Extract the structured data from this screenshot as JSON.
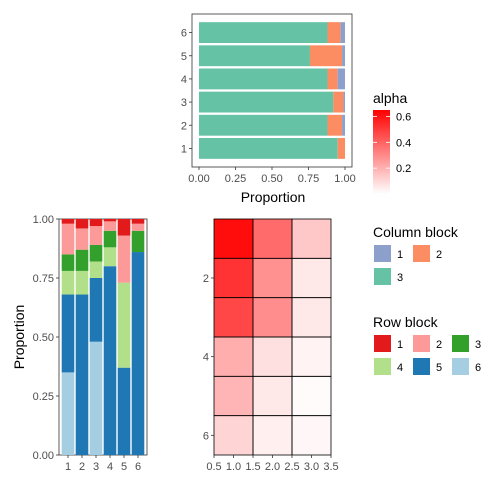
{
  "colors": {
    "column_block": {
      "1": "#8DA0CB",
      "2": "#FC8D62",
      "3": "#66C2A5"
    },
    "row_block": {
      "1": "#E31A1C",
      "2": "#FB9A99",
      "3": "#33A02C",
      "4": "#B2DF8A",
      "5": "#1F78B4",
      "6": "#A6CEE3"
    }
  },
  "chart_data": [
    {
      "type": "bar",
      "orientation": "horizontal",
      "stacked": true,
      "categories": [
        "1",
        "2",
        "3",
        "4",
        "5",
        "6"
      ],
      "series": [
        {
          "name": "3",
          "color": "#66C2A5",
          "values": [
            0.95,
            0.88,
            0.92,
            0.88,
            0.76,
            0.88
          ]
        },
        {
          "name": "2",
          "color": "#FC8D62",
          "values": [
            0.05,
            0.1,
            0.07,
            0.07,
            0.22,
            0.09
          ]
        },
        {
          "name": "1",
          "color": "#8DA0CB",
          "values": [
            0.0,
            0.02,
            0.01,
            0.05,
            0.02,
            0.03
          ]
        }
      ],
      "xlabel": "Proportion",
      "xlim": [
        0,
        1
      ],
      "xticks": [
        "0.00",
        "0.25",
        "0.50",
        "0.75",
        "1.00"
      ]
    },
    {
      "type": "bar",
      "orientation": "vertical",
      "stacked": true,
      "categories": [
        "1",
        "2",
        "3",
        "4",
        "5",
        "6"
      ],
      "series": [
        {
          "name": "6",
          "color": "#A6CEE3",
          "values": [
            0.35,
            0.0,
            0.48,
            0.0,
            0.0,
            0.0
          ]
        },
        {
          "name": "5",
          "color": "#1F78B4",
          "values": [
            0.33,
            0.68,
            0.27,
            0.8,
            0.37,
            0.86
          ]
        },
        {
          "name": "4",
          "color": "#B2DF8A",
          "values": [
            0.1,
            0.1,
            0.07,
            0.08,
            0.36,
            0.0
          ]
        },
        {
          "name": "3",
          "color": "#33A02C",
          "values": [
            0.07,
            0.09,
            0.07,
            0.07,
            0.0,
            0.09
          ]
        },
        {
          "name": "2",
          "color": "#FB9A99",
          "values": [
            0.13,
            0.09,
            0.08,
            0.04,
            0.2,
            0.03
          ]
        },
        {
          "name": "1",
          "color": "#E31A1C",
          "values": [
            0.02,
            0.04,
            0.03,
            0.01,
            0.07,
            0.02
          ]
        }
      ],
      "ylabel": "Proportion",
      "ylim": [
        0,
        1
      ],
      "yticks": [
        "0.00",
        "0.25",
        "0.50",
        "0.75",
        "1.00"
      ]
    },
    {
      "type": "heatmap",
      "rows": [
        1,
        2,
        3,
        4,
        5,
        6
      ],
      "cols": [
        1,
        2,
        3
      ],
      "values": [
        [
          0.62,
          0.38,
          0.14
        ],
        [
          0.52,
          0.28,
          0.06
        ],
        [
          0.47,
          0.29,
          0.06
        ],
        [
          0.21,
          0.08,
          0.03
        ],
        [
          0.19,
          0.06,
          0.01
        ],
        [
          0.11,
          0.04,
          0.02
        ]
      ],
      "xticks": [
        "0.5",
        "1.0",
        "1.5",
        "2.0",
        "2.5",
        "3.0",
        "3.5"
      ],
      "yticks": [
        "2",
        "4",
        "6"
      ],
      "xlim": [
        0.5,
        3.5
      ],
      "ylim": [
        6.5,
        0.5
      ]
    }
  ],
  "legends": {
    "alpha": {
      "title": "alpha",
      "ticks": [
        "0.6",
        "0.4",
        "0.2"
      ],
      "tick_values": [
        0.6,
        0.4,
        0.2
      ],
      "range": [
        0,
        0.65
      ]
    },
    "column_block": {
      "title": "Column block",
      "items": [
        {
          "label": "1",
          "key": "1"
        },
        {
          "label": "2",
          "key": "2"
        },
        {
          "label": "3",
          "key": "3"
        }
      ]
    },
    "row_block": {
      "title": "Row block",
      "items": [
        {
          "label": "1",
          "key": "1"
        },
        {
          "label": "2",
          "key": "2"
        },
        {
          "label": "3",
          "key": "3"
        },
        {
          "label": "4",
          "key": "4"
        },
        {
          "label": "5",
          "key": "5"
        },
        {
          "label": "6",
          "key": "6"
        }
      ]
    }
  }
}
